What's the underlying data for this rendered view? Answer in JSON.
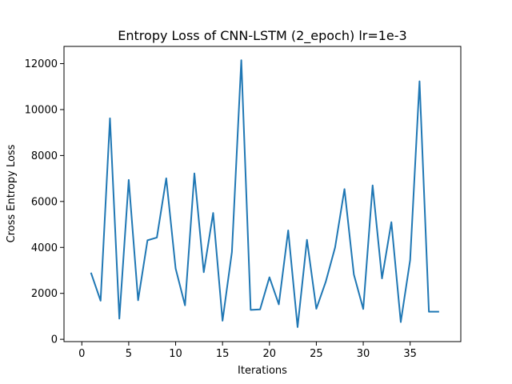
{
  "chart_data": {
    "type": "line",
    "title": "Entropy Loss of CNN-LSTM (2_epoch) lr=1e-3",
    "xlabel": "Iterations",
    "ylabel": "Cross Entropy Loss",
    "xlim": [
      -1.9,
      40.4
    ],
    "ylim": [
      -100,
      12750
    ],
    "xticks": [
      0,
      5,
      10,
      15,
      20,
      25,
      30,
      35
    ],
    "yticks": [
      0,
      2000,
      4000,
      6000,
      8000,
      10000,
      12000
    ],
    "grid": false,
    "line_color": "#1f77b4",
    "series": [
      {
        "x": [
          1,
          2,
          3,
          4,
          5,
          6,
          7,
          8,
          9,
          10,
          11,
          12,
          13,
          14,
          15,
          16,
          17,
          18,
          19,
          20,
          21,
          22,
          23,
          24,
          25,
          26,
          27,
          28,
          29,
          30,
          31,
          32,
          33,
          34,
          35,
          36,
          37,
          38
        ],
        "values": [
          2870,
          1680,
          9620,
          900,
          6940,
          1700,
          4310,
          4430,
          7010,
          3080,
          1480,
          7220,
          2920,
          5500,
          810,
          3800,
          12150,
          1280,
          1300,
          2700,
          1520,
          4740,
          530,
          4330,
          1330,
          2500,
          4000,
          6540,
          2820,
          1320,
          6700,
          2650,
          5100,
          750,
          3450,
          11230,
          1200,
          1200
        ]
      }
    ]
  }
}
